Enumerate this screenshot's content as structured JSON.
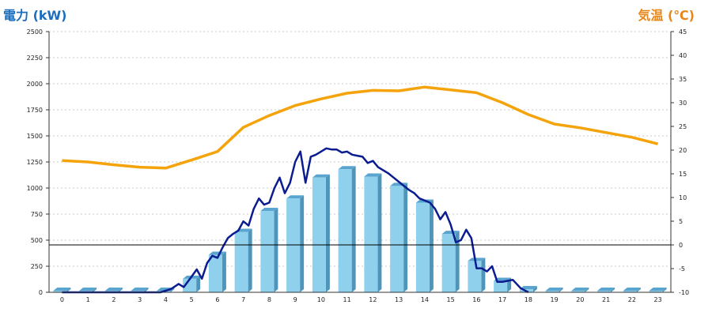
{
  "chart_data": {
    "type": "bar+line",
    "left_axis_title": "電力 (kW)",
    "right_axis_title": "気温 (℃)",
    "y_left": {
      "min": 0,
      "max": 2500,
      "ticks": [
        "0",
        "250",
        "500",
        "750",
        "1000",
        "1250",
        "1500",
        "1750",
        "2000",
        "2250",
        "2500"
      ]
    },
    "y_right": {
      "min": -10,
      "max": 45,
      "ticks": [
        "-10",
        "-5",
        "0",
        "5",
        "10",
        "15",
        "20",
        "25",
        "30",
        "35",
        "40",
        "45"
      ]
    },
    "categories": [
      "0",
      "1",
      "2",
      "3",
      "4",
      "5",
      "6",
      "7",
      "8",
      "9",
      "10",
      "11",
      "12",
      "13",
      "14",
      "15",
      "16",
      "17",
      "18",
      "19",
      "20",
      "21",
      "22",
      "23"
    ],
    "grid": "horizontal-dotted",
    "bar_values": [
      15,
      15,
      15,
      15,
      15,
      130,
      360,
      580,
      780,
      900,
      1100,
      1180,
      1110,
      1020,
      860,
      560,
      300,
      110,
      30,
      15,
      15,
      15,
      15,
      15
    ],
    "power_line": {
      "x": [
        0,
        1,
        2,
        3,
        3.8,
        4.2,
        4.5,
        4.7,
        5.0,
        5.2,
        5.4,
        5.6,
        5.8,
        6.0,
        6.2,
        6.4,
        6.6,
        6.8,
        7.0,
        7.2,
        7.4,
        7.6,
        7.8,
        8.0,
        8.2,
        8.4,
        8.6,
        8.8,
        9.0,
        9.2,
        9.4,
        9.6,
        9.8,
        10.0,
        10.2,
        10.4,
        10.6,
        10.8,
        11.0,
        11.2,
        11.4,
        11.6,
        11.8,
        12.0,
        12.2,
        12.4,
        12.6,
        12.8,
        13.0,
        13.2,
        13.4,
        13.6,
        13.8,
        14.0,
        14.2,
        14.4,
        14.6,
        14.8,
        15.0,
        15.2,
        15.4,
        15.6,
        15.8,
        16.0,
        16.2,
        16.4,
        16.6,
        16.8,
        17.0,
        17.2,
        17.4,
        17.7,
        18.0
      ],
      "values": [
        0,
        0,
        0,
        0,
        0,
        30,
        80,
        50,
        150,
        220,
        130,
        280,
        350,
        330,
        430,
        520,
        560,
        590,
        680,
        640,
        800,
        900,
        840,
        860,
        1000,
        1100,
        950,
        1050,
        1250,
        1350,
        1050,
        1300,
        1320,
        1350,
        1380,
        1370,
        1370,
        1340,
        1350,
        1320,
        1310,
        1300,
        1240,
        1260,
        1200,
        1170,
        1140,
        1100,
        1060,
        1020,
        980,
        950,
        900,
        880,
        860,
        800,
        700,
        770,
        650,
        480,
        500,
        600,
        520,
        230,
        230,
        200,
        250,
        100,
        100,
        110,
        120,
        40,
        0
      ]
    },
    "temperature_line": {
      "x": [
        0,
        1,
        2,
        3,
        4,
        5,
        6,
        7,
        8,
        9,
        10,
        11,
        12,
        13,
        14,
        15,
        16,
        17,
        18,
        19,
        20,
        21,
        22,
        23
      ],
      "values": [
        17.8,
        17.5,
        16.9,
        16.4,
        16.2,
        17.9,
        19.7,
        24.8,
        27.3,
        29.4,
        30.8,
        32.0,
        32.6,
        32.5,
        33.3,
        32.7,
        32.1,
        30.0,
        27.5,
        25.5,
        24.7,
        23.7,
        22.7,
        21.3
      ]
    },
    "colors": {
      "bar_front": "#8fd0ec",
      "bar_side": "#4f95ba",
      "bar_top": "#5aa5cf",
      "power_line": "#0a1c8f",
      "temperature_line": "#f5a30a",
      "left_title": "#1a6ebd",
      "right_title": "#e8861a"
    }
  }
}
